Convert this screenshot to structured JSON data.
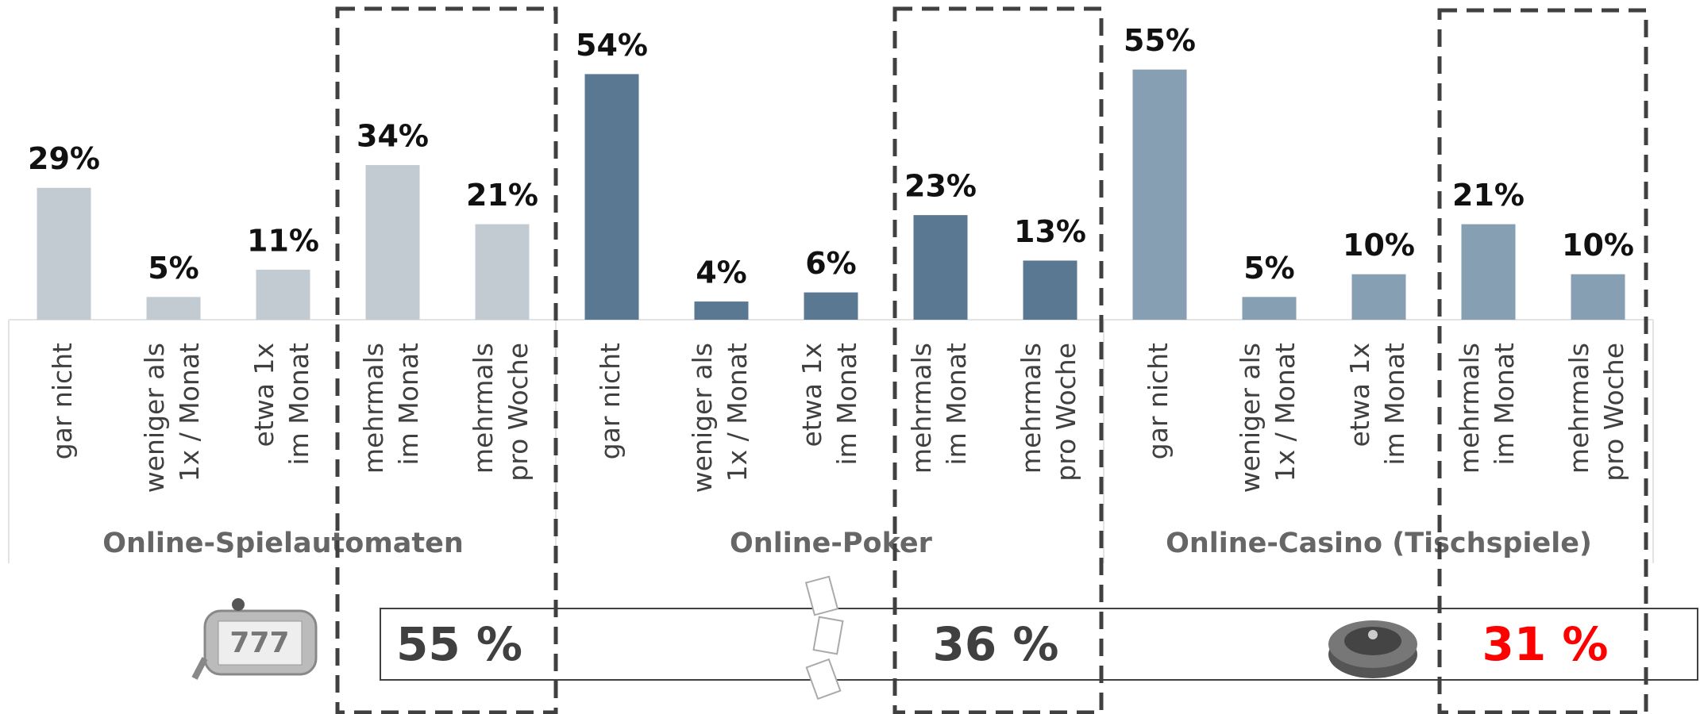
{
  "chart_data": {
    "type": "bar",
    "ylim": [
      0,
      60
    ],
    "groups": [
      {
        "name": "Online-Spielautomaten",
        "color": "#c3cbd2",
        "categories": [
          [
            "gar nicht"
          ],
          [
            "weniger als",
            "1x / Monat"
          ],
          [
            "etwa 1x",
            "im Monat"
          ],
          [
            "mehrmals",
            "im Monat"
          ],
          [
            "mehrmals",
            "pro Woche"
          ]
        ],
        "values": [
          29,
          5,
          11,
          34,
          21
        ],
        "value_labels": [
          "29%",
          "5%",
          "11%",
          "34%",
          "21%"
        ]
      },
      {
        "name": "Online-Poker",
        "color": "#5b7893",
        "categories": [
          [
            "gar nicht"
          ],
          [
            "weniger als",
            "1x / Monat"
          ],
          [
            "etwa 1x",
            "im Monat"
          ],
          [
            "mehrmals",
            "im Monat"
          ],
          [
            "mehrmals",
            "pro Woche"
          ]
        ],
        "values": [
          54,
          4,
          6,
          23,
          13
        ],
        "value_labels": [
          "54%",
          "4%",
          "6%",
          "23%",
          "13%"
        ]
      },
      {
        "name": "Online-Casino (Tischspiele)",
        "color": "#869fb3",
        "categories": [
          [
            "gar nicht"
          ],
          [
            "weniger als",
            "1x / Monat"
          ],
          [
            "etwa 1x",
            "im Monat"
          ],
          [
            "mehrmals",
            "im Monat"
          ],
          [
            "mehrmals",
            "pro Woche"
          ]
        ],
        "values": [
          55,
          5,
          10,
          21,
          10
        ],
        "value_labels": [
          "55%",
          "5%",
          "10%",
          "21%",
          "10%"
        ]
      }
    ],
    "summary": {
      "values": [
        55,
        36,
        31
      ],
      "value_labels": [
        "55 %",
        "36 %",
        "31 %"
      ],
      "colors": [
        "#404040",
        "#404040",
        "#ff0000"
      ]
    }
  }
}
